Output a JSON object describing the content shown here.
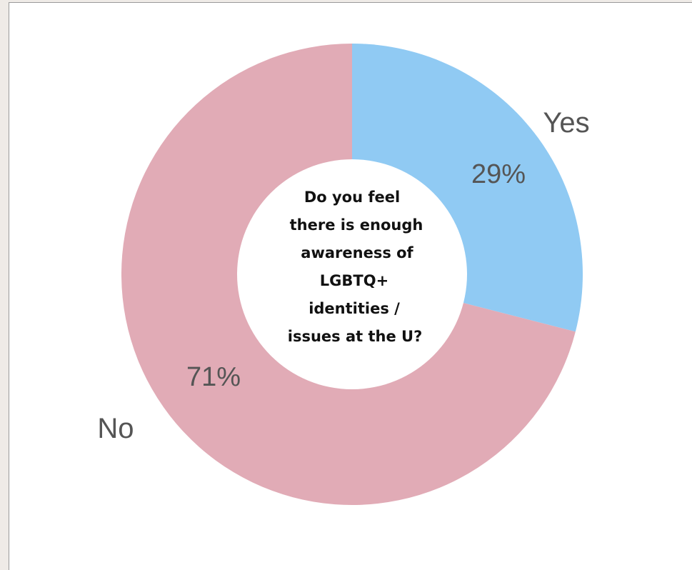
{
  "chart_data": {
    "type": "pie",
    "donut": true,
    "center_text": [
      "Do you feel",
      "there is enough",
      "awareness of",
      "LGBTQ+",
      "identities /",
      "issues at the U?"
    ],
    "slices": [
      {
        "label": "Yes",
        "value": 29,
        "value_label": "29%",
        "color": "#90caf3"
      },
      {
        "label": "No",
        "value": 71,
        "value_label": "71%",
        "color": "#e1abb6"
      }
    ],
    "start_angle": "12 o'clock",
    "direction": "clockwise"
  }
}
